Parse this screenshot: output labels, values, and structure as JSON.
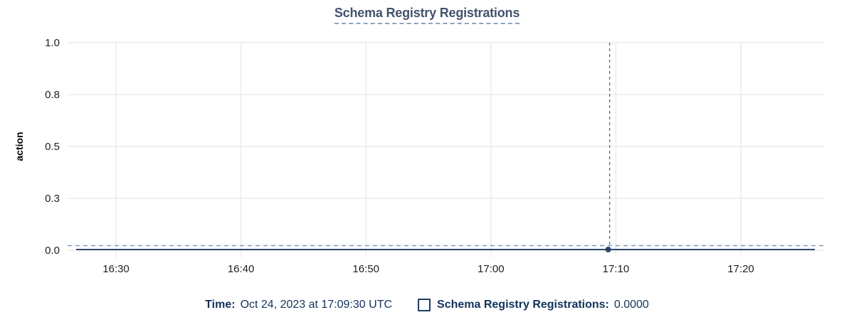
{
  "colors": {
    "title_text": "#42526e",
    "title_underline": "#8ca3c0",
    "axis_text": "#1f1f1f",
    "axis_title_text": "#000000",
    "grid": "#ececec",
    "series_line": "#2f4a6b",
    "marker": "#2d4465",
    "crosshair_vertical": "#54737f",
    "crosshair_horizontal": "#7f9cba",
    "legend_text": "#12335c",
    "checkbox_border": "#1e3c63"
  },
  "legend": {
    "time_label": "Time:",
    "time_value": "Oct 24, 2023 at 17:09:30 UTC",
    "series_label": "Schema Registry Registrations:",
    "series_value": "0.0000",
    "checkbox_checked": false
  },
  "chart_data": {
    "type": "line",
    "title": "Schema Registry Registrations",
    "xlabel": "",
    "ylabel": "action",
    "x_tick_labels": [
      "16:30",
      "16:40",
      "16:50",
      "17:00",
      "17:10",
      "17:20"
    ],
    "x_tick_interval_minutes": 10,
    "y_tick_labels": [
      "1.0",
      "0.8",
      "0.5",
      "0.3",
      "0.0"
    ],
    "y_tick_values": [
      1.0,
      0.75,
      0.5,
      0.25,
      0.0
    ],
    "ylim": [
      0.0,
      1.0
    ],
    "grid": true,
    "legend_position": "bottom-center",
    "series": [
      {
        "name": "Schema Registry Registrations",
        "value": 0.0,
        "shape": "flat line at 0 across the entire visible time range"
      }
    ],
    "hover_point": {
      "date": "Oct 24, 2023",
      "time": "17:09:30",
      "timezone": "UTC",
      "value": 0.0,
      "value_display": "0.0000",
      "minutes_after_first_tick": 39.5
    }
  }
}
